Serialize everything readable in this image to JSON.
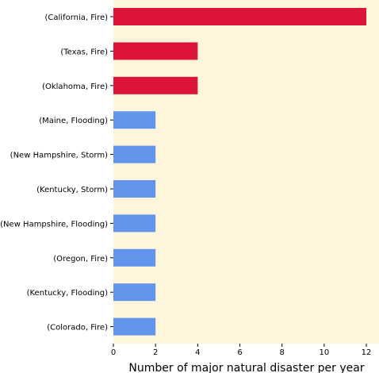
{
  "chart_data": {
    "type": "bar",
    "orientation": "horizontal",
    "categories": [
      "(California, Fire)",
      "(Texas, Fire)",
      "(Oklahoma, Fire)",
      "(Maine, Flooding)",
      "(New Hampshire, Storm)",
      "(Kentucky, Storm)",
      "(New Hampshire, Flooding)",
      "(Oregon, Fire)",
      "(Kentucky, Flooding)",
      "(Colorado, Fire)"
    ],
    "values": [
      12,
      4,
      4,
      2,
      2,
      2,
      2,
      2,
      2,
      2
    ],
    "bar_colors": [
      "#dc143c",
      "#dc143c",
      "#dc143c",
      "#6495ed",
      "#6495ed",
      "#6495ed",
      "#6495ed",
      "#6495ed",
      "#6495ed",
      "#6495ed"
    ],
    "background_color": "#fdf5dc",
    "title": "",
    "xlabel": "Number of major natural disaster per year",
    "ylabel": "",
    "xlim": [
      0,
      12.6
    ],
    "xticks": [
      0,
      2,
      4,
      6,
      8,
      10,
      12
    ],
    "grid": false
  }
}
